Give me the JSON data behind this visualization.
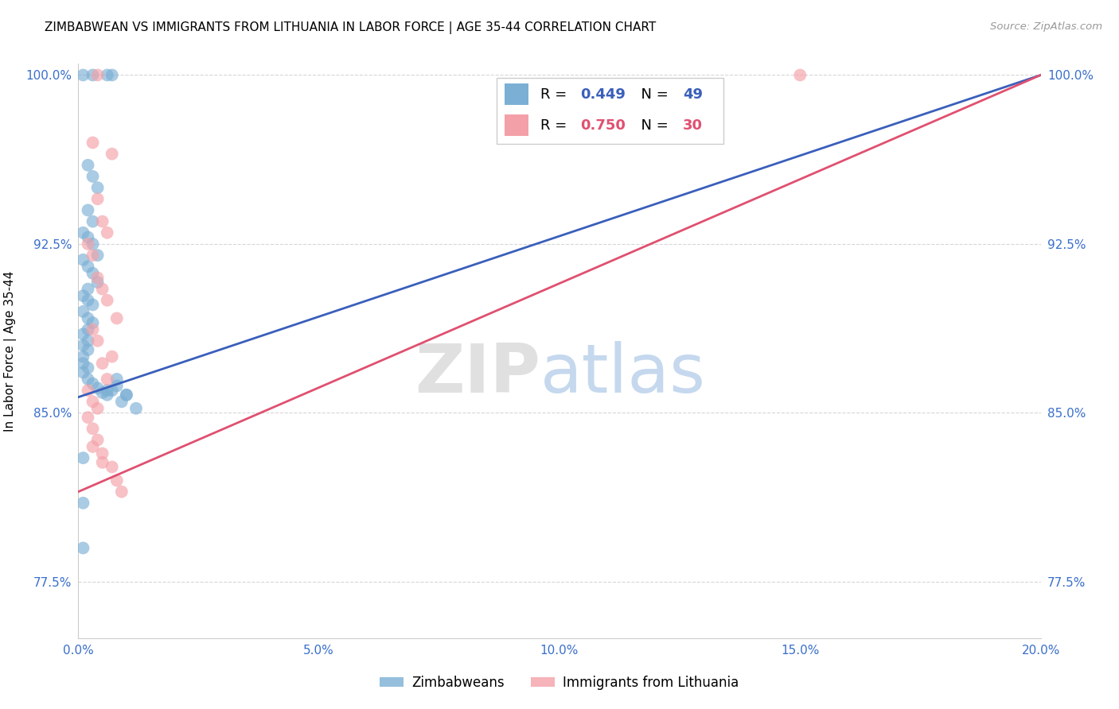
{
  "title": "ZIMBABWEAN VS IMMIGRANTS FROM LITHUANIA IN LABOR FORCE | AGE 35-44 CORRELATION CHART",
  "source": "Source: ZipAtlas.com",
  "ylabel": "In Labor Force | Age 35-44",
  "xlim": [
    0.0,
    0.2
  ],
  "ylim": [
    0.75,
    1.005
  ],
  "xtick_vals": [
    0.0,
    0.05,
    0.1,
    0.15,
    0.2
  ],
  "xtick_labels": [
    "0.0%",
    "5.0%",
    "10.0%",
    "15.0%",
    "20.0%"
  ],
  "ytick_vals": [
    0.775,
    0.85,
    0.925,
    1.0
  ],
  "ytick_labels": [
    "77.5%",
    "85.0%",
    "92.5%",
    "100.0%"
  ],
  "legend_label1": "Zimbabweans",
  "legend_label2": "Immigrants from Lithuania",
  "r1": 0.449,
  "n1": 49,
  "r2": 0.75,
  "n2": 30,
  "blue_color": "#7BAFD4",
  "pink_color": "#F4A0A8",
  "blue_line_color": "#3A5FBB",
  "pink_line_color": "#E05070",
  "background_color": "#FFFFFF",
  "grid_color": "#CCCCCC",
  "blue_scatter_x": [
    0.001,
    0.003,
    0.006,
    0.007,
    0.002,
    0.003,
    0.004,
    0.002,
    0.003,
    0.001,
    0.002,
    0.003,
    0.004,
    0.001,
    0.002,
    0.003,
    0.004,
    0.002,
    0.001,
    0.002,
    0.003,
    0.001,
    0.002,
    0.003,
    0.002,
    0.001,
    0.002,
    0.001,
    0.002,
    0.001,
    0.001,
    0.002,
    0.001,
    0.002,
    0.003,
    0.004,
    0.005,
    0.006,
    0.007,
    0.008,
    0.009,
    0.01,
    0.008,
    0.01,
    0.012,
    0.001,
    0.001,
    0.006,
    0.001
  ],
  "blue_scatter_y": [
    1.0,
    1.0,
    1.0,
    1.0,
    0.96,
    0.955,
    0.95,
    0.94,
    0.935,
    0.93,
    0.928,
    0.925,
    0.92,
    0.918,
    0.915,
    0.912,
    0.908,
    0.905,
    0.902,
    0.9,
    0.898,
    0.895,
    0.892,
    0.89,
    0.887,
    0.885,
    0.882,
    0.88,
    0.878,
    0.875,
    0.872,
    0.87,
    0.868,
    0.865,
    0.863,
    0.861,
    0.859,
    0.858,
    0.86,
    0.862,
    0.855,
    0.858,
    0.865,
    0.858,
    0.852,
    0.81,
    0.79,
    0.86,
    0.83
  ],
  "pink_scatter_x": [
    0.004,
    0.003,
    0.007,
    0.004,
    0.005,
    0.006,
    0.002,
    0.003,
    0.004,
    0.005,
    0.006,
    0.008,
    0.003,
    0.004,
    0.007,
    0.005,
    0.006,
    0.002,
    0.003,
    0.004,
    0.002,
    0.003,
    0.004,
    0.005,
    0.007,
    0.008,
    0.009,
    0.005,
    0.003,
    0.15
  ],
  "pink_scatter_y": [
    1.0,
    0.97,
    0.965,
    0.945,
    0.935,
    0.93,
    0.925,
    0.92,
    0.91,
    0.905,
    0.9,
    0.892,
    0.887,
    0.882,
    0.875,
    0.872,
    0.865,
    0.86,
    0.855,
    0.852,
    0.848,
    0.843,
    0.838,
    0.832,
    0.826,
    0.82,
    0.815,
    0.828,
    0.835,
    1.0
  ],
  "blue_trendline": [
    0.0,
    0.2,
    0.857,
    1.0
  ],
  "pink_trendline": [
    0.0,
    0.2,
    0.815,
    1.0
  ]
}
